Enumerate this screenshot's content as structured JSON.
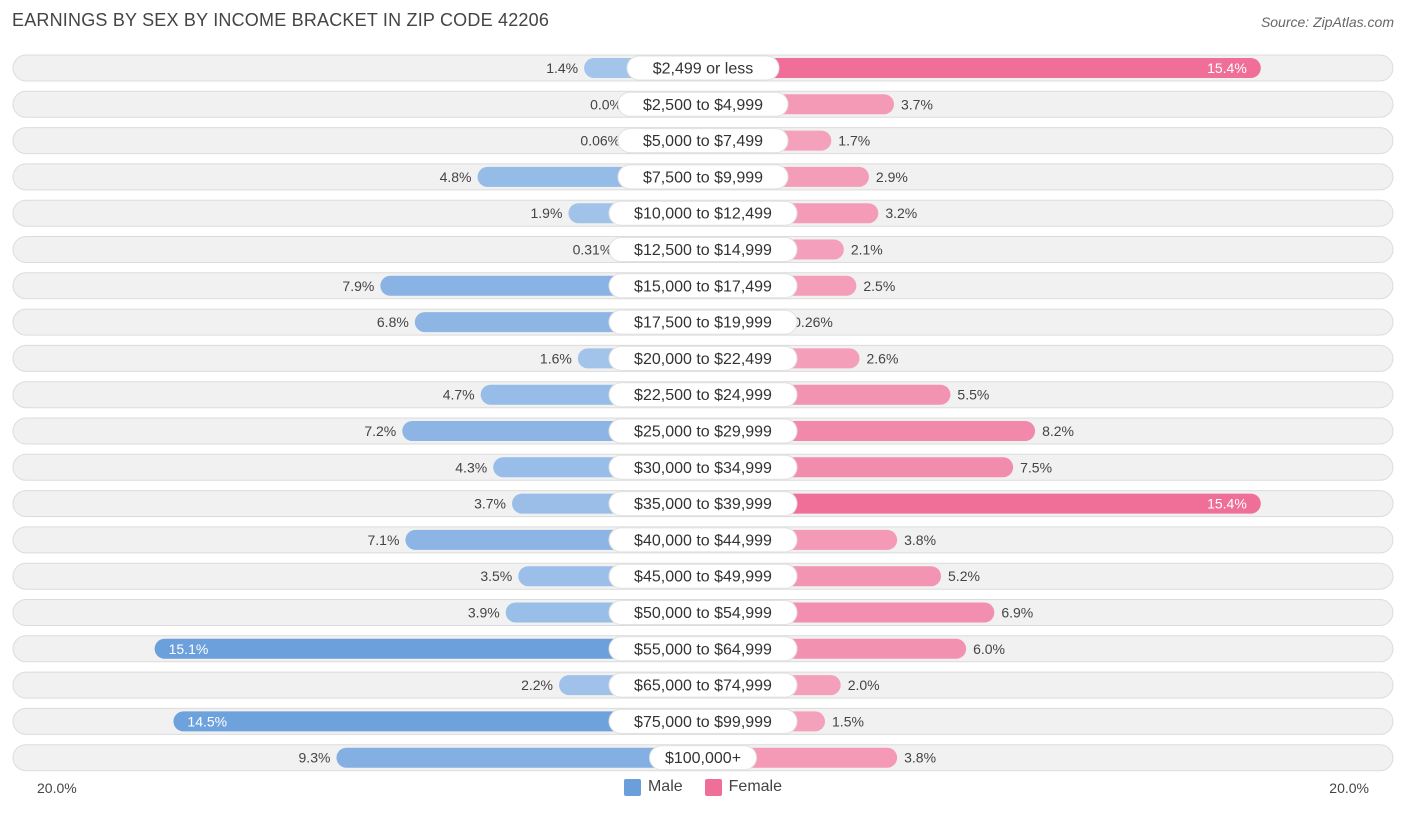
{
  "title": "EARNINGS BY SEX BY INCOME BRACKET IN ZIP CODE 42206",
  "source": "Source: ZipAtlas.com",
  "axis": {
    "left_label": "20.0%",
    "right_label": "20.0%"
  },
  "legend": {
    "male_label": "Male",
    "female_label": "Female"
  },
  "colors": {
    "male_light": "#a9c8ec",
    "male_dark": "#6a9fdc",
    "female_light": "#f5a7c0",
    "female_dark": "#ef6f99",
    "row_bg": "#f1f1f1",
    "row_border": "#dcdcdc"
  },
  "chart_data": {
    "type": "bar",
    "orientation": "horizontal-diverging",
    "title": "EARNINGS BY SEX BY INCOME BRACKET IN ZIP CODE 42206",
    "xlim": [
      -20,
      20
    ],
    "categories": [
      "$2,499 or less",
      "$2,500 to $4,999",
      "$5,000 to $7,499",
      "$7,500 to $9,999",
      "$10,000 to $12,499",
      "$12,500 to $14,999",
      "$15,000 to $17,499",
      "$17,500 to $19,999",
      "$20,000 to $22,499",
      "$22,500 to $24,999",
      "$25,000 to $29,999",
      "$30,000 to $34,999",
      "$35,000 to $39,999",
      "$40,000 to $44,999",
      "$45,000 to $49,999",
      "$50,000 to $54,999",
      "$55,000 to $64,999",
      "$65,000 to $74,999",
      "$75,000 to $99,999",
      "$100,000+"
    ],
    "series": [
      {
        "name": "Male",
        "values": [
          1.4,
          0.0,
          0.06,
          4.8,
          1.9,
          0.31,
          7.9,
          6.8,
          1.6,
          4.7,
          7.2,
          4.3,
          3.7,
          7.1,
          3.5,
          3.9,
          15.1,
          2.2,
          14.5,
          9.3
        ],
        "labels": [
          "1.4%",
          "0.0%",
          "0.06%",
          "4.8%",
          "1.9%",
          "0.31%",
          "7.9%",
          "6.8%",
          "1.6%",
          "4.7%",
          "7.2%",
          "4.3%",
          "3.7%",
          "7.1%",
          "3.5%",
          "3.9%",
          "15.1%",
          "2.2%",
          "14.5%",
          "9.3%"
        ]
      },
      {
        "name": "Female",
        "values": [
          15.4,
          3.7,
          1.7,
          2.9,
          3.2,
          2.1,
          2.5,
          0.26,
          2.6,
          5.5,
          8.2,
          7.5,
          15.4,
          3.8,
          5.2,
          6.9,
          6.0,
          2.0,
          1.5,
          3.8
        ],
        "labels": [
          "15.4%",
          "3.7%",
          "1.7%",
          "2.9%",
          "3.2%",
          "2.1%",
          "2.5%",
          "0.26%",
          "2.6%",
          "5.5%",
          "8.2%",
          "7.5%",
          "15.4%",
          "3.8%",
          "5.2%",
          "6.9%",
          "6.0%",
          "2.0%",
          "1.5%",
          "3.8%"
        ]
      }
    ]
  }
}
